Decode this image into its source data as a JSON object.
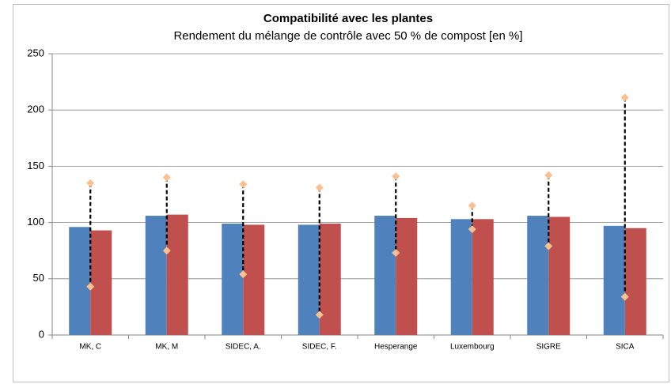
{
  "chart_data": {
    "type": "bar",
    "title": "Compatibilité avec les plantes",
    "subtitle": "Rendement du mélange de contrôle avec 50 % de compost [en %]",
    "categories": [
      "MK, C",
      "MK, M",
      "SIDEC, A.",
      "SIDEC, F.",
      "Hesperange",
      "Luxembourg",
      "SIGRE",
      "SICA"
    ],
    "series": [
      {
        "color": "#4f81bd",
        "values": [
          96,
          106,
          99,
          98,
          106,
          103,
          106,
          97
        ]
      },
      {
        "color": "#c0504d",
        "values": [
          93,
          107,
          98,
          99,
          104,
          103,
          105,
          95
        ]
      }
    ],
    "range": {
      "color": "#fac090",
      "high": [
        135,
        140,
        134,
        131,
        141,
        115,
        142,
        211
      ],
      "low": [
        43,
        75,
        54,
        18,
        73,
        94,
        79,
        34
      ]
    },
    "ylim": [
      0,
      250
    ],
    "yticks": [
      0,
      50,
      100,
      150,
      200,
      250
    ],
    "grid": true
  }
}
